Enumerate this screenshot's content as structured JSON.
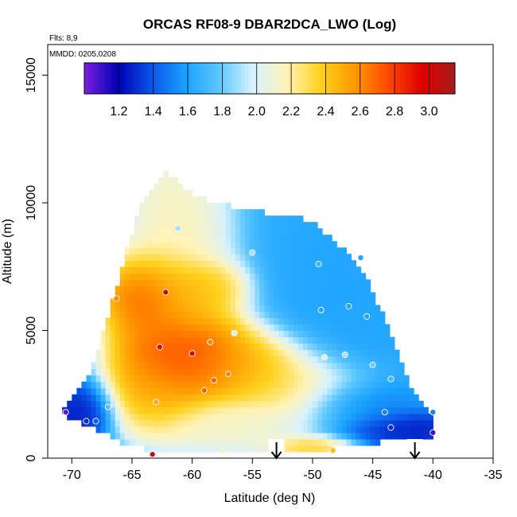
{
  "chart_data": {
    "type": "heatmap",
    "title": "ORCAS RF08-9 DBAR2DCA_LWO (Log)",
    "flights_note": "Flts: 8,9",
    "dates_note": "MMDD: 0205,0208",
    "xlabel": "Latitude (deg N)",
    "ylabel": "Altitude (m)",
    "xlim": [
      -72,
      -35
    ],
    "ylim": [
      0,
      16200
    ],
    "x_ticks": [
      -70,
      -65,
      -60,
      -55,
      -50,
      -45,
      -40,
      -35
    ],
    "y_ticks": [
      0,
      5000,
      10000,
      15000
    ],
    "colorbar": {
      "range": [
        1.0,
        3.15
      ],
      "ticks": [
        1.2,
        1.4,
        1.6,
        1.8,
        2.0,
        2.2,
        2.4,
        2.6,
        2.8,
        3.0
      ],
      "tick_labels": [
        "1.2",
        "1.4",
        "1.6",
        "1.8",
        "2.0",
        "2.2",
        "2.4",
        "2.6",
        "2.8",
        "3.0"
      ],
      "colors": [
        "#7a1fe0",
        "#0000b3",
        "#0a55e8",
        "#1aa2ff",
        "#5cc6ff",
        "#d6f2ff",
        "#fff3b8",
        "#ffd21e",
        "#ff9a00",
        "#ff4a00",
        "#e00000",
        "#a51d1d"
      ]
    },
    "domain_polygon": [
      [
        -70.8,
        1900
      ],
      [
        -68.5,
        3300
      ],
      [
        -66.5,
        6300
      ],
      [
        -64.5,
        9700
      ],
      [
        -62.2,
        11300
      ],
      [
        -60.0,
        10300
      ],
      [
        -56.0,
        9800
      ],
      [
        -50.0,
        9300
      ],
      [
        -46.0,
        7500
      ],
      [
        -44.0,
        5500
      ],
      [
        -41.5,
        2500
      ],
      [
        -40.0,
        1500
      ],
      [
        -40.0,
        800
      ],
      [
        -42.0,
        800
      ],
      [
        -47.5,
        400
      ],
      [
        -53.0,
        250
      ],
      [
        -60.0,
        250
      ],
      [
        -65.0,
        400
      ],
      [
        -67.0,
        900
      ],
      [
        -70.8,
        1700
      ]
    ],
    "field_background": 1.65,
    "field_features": [
      {
        "lat": -61.5,
        "alt": 8500,
        "value": 2.25,
        "sigma_lat": 2.5,
        "sigma_alt": 2600
      },
      {
        "lat": -63.5,
        "alt": 6400,
        "value": 2.95,
        "sigma_lat": 2.2,
        "sigma_alt": 900
      },
      {
        "lat": -59.5,
        "alt": 6700,
        "value": 2.55,
        "sigma_lat": 2.0,
        "sigma_alt": 600
      },
      {
        "lat": -61.0,
        "alt": 4100,
        "value": 3.05,
        "sigma_lat": 3.0,
        "sigma_alt": 1100
      },
      {
        "lat": -56.0,
        "alt": 3500,
        "value": 2.6,
        "sigma_lat": 3.5,
        "sigma_alt": 800
      },
      {
        "lat": -51.0,
        "alt": 2800,
        "value": 2.35,
        "sigma_lat": 3.0,
        "sigma_alt": 700
      },
      {
        "lat": -63.0,
        "alt": 2500,
        "value": 2.55,
        "sigma_lat": 2.0,
        "sigma_alt": 900
      },
      {
        "lat": -57.0,
        "alt": 1200,
        "value": 2.2,
        "sigma_lat": 4.0,
        "sigma_alt": 600
      },
      {
        "lat": -50.0,
        "alt": 450,
        "value": 2.5,
        "sigma_lat": 2.0,
        "sigma_alt": 250
      },
      {
        "lat": -69.5,
        "alt": 1700,
        "value": 1.2,
        "sigma_lat": 1.5,
        "sigma_alt": 700
      },
      {
        "lat": -42.0,
        "alt": 1100,
        "value": 1.2,
        "sigma_lat": 3.0,
        "sigma_alt": 400
      },
      {
        "lat": -46.0,
        "alt": 2200,
        "value": 1.45,
        "sigma_lat": 2.5,
        "sigma_alt": 500
      },
      {
        "lat": -47.0,
        "alt": 6000,
        "value": 1.6,
        "sigma_lat": 3.0,
        "sigma_alt": 2500
      }
    ],
    "observations": [
      {
        "lat": -70.5,
        "alt": 1800,
        "value": 1.05
      },
      {
        "lat": -68.8,
        "alt": 1450,
        "value": 1.3
      },
      {
        "lat": -68.0,
        "alt": 1450,
        "value": 1.4
      },
      {
        "lat": -67.0,
        "alt": 2000,
        "value": 1.75
      },
      {
        "lat": -66.3,
        "alt": 6250,
        "value": 2.6
      },
      {
        "lat": -63.0,
        "alt": 2200,
        "value": 2.5
      },
      {
        "lat": -62.7,
        "alt": 4350,
        "value": 3.0
      },
      {
        "lat": -62.2,
        "alt": 6500,
        "value": 3.0
      },
      {
        "lat": -61.2,
        "alt": 9000,
        "value": 1.9
      },
      {
        "lat": -60.0,
        "alt": 4100,
        "value": 3.0
      },
      {
        "lat": -59.0,
        "alt": 2650,
        "value": 2.7
      },
      {
        "lat": -58.5,
        "alt": 4550,
        "value": 2.6
      },
      {
        "lat": -58.2,
        "alt": 3050,
        "value": 2.7
      },
      {
        "lat": -57.0,
        "alt": 3300,
        "value": 2.6
      },
      {
        "lat": -56.5,
        "alt": 4900,
        "value": 2.0
      },
      {
        "lat": -55.0,
        "alt": 8050,
        "value": 1.9
      },
      {
        "lat": -49.5,
        "alt": 7600,
        "value": 1.7
      },
      {
        "lat": -49.3,
        "alt": 5800,
        "value": 1.6
      },
      {
        "lat": -49.0,
        "alt": 3950,
        "value": 2.0
      },
      {
        "lat": -47.3,
        "alt": 4050,
        "value": 1.9
      },
      {
        "lat": -47.0,
        "alt": 5950,
        "value": 1.6
      },
      {
        "lat": -46.0,
        "alt": 7850,
        "value": 1.6
      },
      {
        "lat": -45.5,
        "alt": 5550,
        "value": 1.6
      },
      {
        "lat": -45.0,
        "alt": 3650,
        "value": 1.8
      },
      {
        "lat": -44.0,
        "alt": 1800,
        "value": 1.5
      },
      {
        "lat": -43.5,
        "alt": 3100,
        "value": 1.7
      },
      {
        "lat": -43.5,
        "alt": 1200,
        "value": 1.3
      },
      {
        "lat": -40.0,
        "alt": 1800,
        "value": 1.5
      },
      {
        "lat": -40.0,
        "alt": 1000,
        "value": 1.1
      },
      {
        "lat": -63.3,
        "alt": 150,
        "value": 3.05
      },
      {
        "lat": -57.5,
        "alt": 300,
        "value": 2.1
      },
      {
        "lat": -48.3,
        "alt": 300,
        "value": 2.45
      }
    ],
    "markers": [
      {
        "lat": -53.0,
        "type": "down-arrow"
      },
      {
        "lat": -41.5,
        "type": "down-arrow"
      }
    ]
  }
}
